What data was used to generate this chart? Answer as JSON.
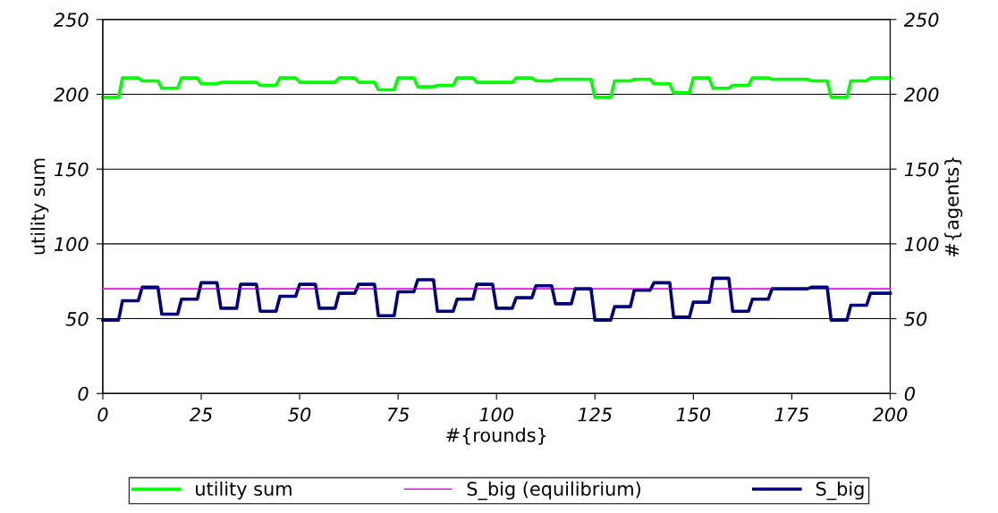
{
  "chart_data": {
    "type": "line",
    "xlabel": "#{rounds}",
    "ylabel": "utility sum",
    "y2label": "#{agents}",
    "x": [
      0,
      4,
      5,
      9,
      10,
      14,
      15,
      19,
      20,
      24,
      25,
      29,
      30,
      34,
      35,
      39,
      40,
      44,
      45,
      49,
      50,
      54,
      55,
      59,
      60,
      64,
      65,
      69,
      70,
      74,
      75,
      79,
      80,
      84,
      85,
      89,
      90,
      94,
      95,
      99,
      100,
      104,
      105,
      109,
      110,
      114,
      115,
      119,
      120,
      124,
      125,
      129,
      130,
      134,
      135,
      139,
      140,
      144,
      145,
      149,
      150,
      154,
      155,
      159,
      160,
      164,
      165,
      169,
      170,
      174,
      175,
      179,
      180,
      184,
      185,
      189,
      190,
      194,
      195,
      200
    ],
    "series": [
      {
        "name": "utility sum",
        "color": "#00ff00",
        "values": [
          198,
          198,
          211,
          211,
          209,
          209,
          204,
          204,
          211,
          211,
          207,
          207,
          208,
          208,
          208,
          208,
          206,
          206,
          211,
          211,
          208,
          208,
          208,
          208,
          211,
          211,
          208,
          208,
          203,
          203,
          211,
          211,
          205,
          205,
          206,
          206,
          211,
          211,
          208,
          208,
          208,
          208,
          211,
          211,
          209,
          209,
          210,
          210,
          210,
          210,
          198,
          198,
          209,
          209,
          210,
          210,
          207,
          207,
          201,
          201,
          211,
          211,
          204,
          204,
          206,
          206,
          211,
          211,
          210,
          210,
          210,
          210,
          209,
          209,
          198,
          198,
          209,
          209,
          211,
          211
        ]
      },
      {
        "name": "S_big (equilibrium)",
        "color": "#ff00ff",
        "axis": "y2",
        "x": [
          0,
          200
        ],
        "values": [
          70,
          70
        ]
      },
      {
        "name": "S_big",
        "color": "#000080",
        "axis": "y2",
        "values": [
          49,
          49,
          62,
          62,
          71,
          71,
          53,
          53,
          63,
          63,
          74,
          74,
          57,
          57,
          73,
          73,
          55,
          55,
          65,
          65,
          73,
          73,
          57,
          57,
          67,
          67,
          73,
          73,
          52,
          52,
          68,
          68,
          76,
          76,
          55,
          55,
          63,
          63,
          73,
          73,
          57,
          57,
          64,
          64,
          72,
          72,
          60,
          60,
          70,
          70,
          49,
          49,
          58,
          58,
          69,
          69,
          74,
          74,
          51,
          51,
          61,
          61,
          77,
          77,
          55,
          55,
          63,
          63,
          70,
          70,
          70,
          70,
          71,
          71,
          49,
          49,
          59,
          59,
          67,
          67
        ]
      }
    ],
    "xlim": [
      0,
      200
    ],
    "xticks": [
      0,
      25,
      50,
      75,
      100,
      125,
      150,
      175,
      200
    ],
    "ylim": [
      0,
      250
    ],
    "yticks": [
      0,
      50,
      100,
      150,
      200,
      250
    ],
    "y2lim": [
      0,
      250
    ],
    "y2ticks": [
      0,
      50,
      100,
      150,
      200,
      250
    ],
    "grid": "y",
    "legend": "bottom",
    "marker": "none",
    "line_style": "solid"
  }
}
